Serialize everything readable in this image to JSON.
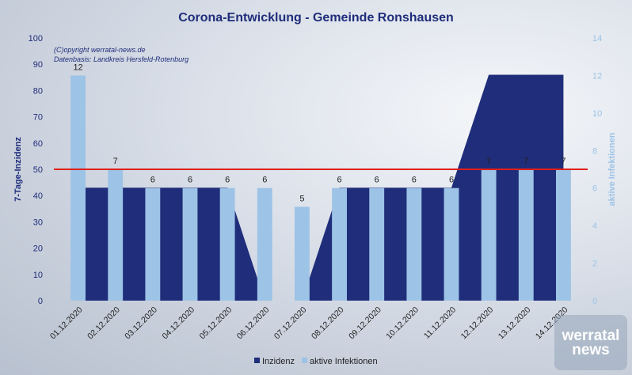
{
  "chart_data": {
    "type": "bar",
    "title": "Corona-Entwicklung - Gemeinde Ronshausen",
    "notes": [
      "(C)opyright werratal-news.de",
      "Datenbasis: Landkreis Hersfeld-Rotenburg"
    ],
    "categories": [
      "01.12.2020",
      "02.12.2020",
      "03.12.2020",
      "04.12.2020",
      "05.12.2020",
      "06.12.2020",
      "07.12.2020",
      "08.12.2020",
      "09.12.2020",
      "10.12.2020",
      "11.12.2020",
      "12.12.2020",
      "13.12.2020",
      "14.12.2020"
    ],
    "ylabel_left": "7-Tage-Inzidenz",
    "ylabel_right": "aktive Infektionen",
    "ylim_left": [
      0,
      100
    ],
    "ylim_right": [
      0,
      14
    ],
    "yticks_left": [
      0,
      10,
      20,
      30,
      40,
      50,
      60,
      70,
      80,
      90,
      100
    ],
    "yticks_right": [
      0,
      2,
      4,
      6,
      8,
      10,
      12,
      14
    ],
    "series": [
      {
        "name": "Inzidenz",
        "type": "area",
        "axis": "left",
        "color": "#1f2d7a",
        "values": [
          43,
          43,
          43,
          43,
          43,
          0,
          0,
          43,
          43,
          43,
          43,
          86,
          86,
          86
        ]
      },
      {
        "name": "aktive Infektionen",
        "type": "bar",
        "axis": "right",
        "color": "#9dc3e6",
        "values": [
          12,
          7,
          6,
          6,
          6,
          6,
          5,
          6,
          6,
          6,
          6,
          7,
          7,
          7
        ]
      }
    ],
    "threshold": {
      "value": 50,
      "color": "#e0201a"
    },
    "legend_position": "bottom",
    "axis_colors": {
      "left": "#1f2d7a",
      "right": "#9dc3e6"
    }
  },
  "logo": {
    "line1": "werratal",
    "line2": "news"
  }
}
